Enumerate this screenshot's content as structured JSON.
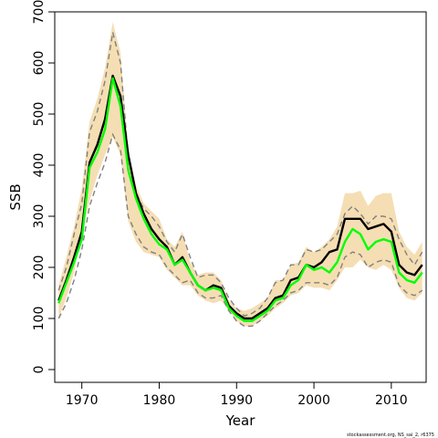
{
  "footnote": "stockassessment.org, NS_sai_2, r6375",
  "chart_data": {
    "type": "line",
    "xlabel": "Year",
    "ylabel": "SSB",
    "xlim": [
      1966.5,
      2014.5
    ],
    "ylim": [
      -25,
      700
    ],
    "x_ticks": [
      1970,
      1980,
      1990,
      2000,
      2010
    ],
    "y_ticks": [
      0,
      100,
      200,
      300,
      400,
      500,
      600,
      700
    ],
    "x_tick_labels": [
      "1970",
      "1980",
      "1990",
      "2000",
      "2010"
    ],
    "y_tick_labels": [
      "0",
      "100",
      "200",
      "300",
      "400",
      "500",
      "600",
      "700"
    ],
    "grid": false,
    "colors": {
      "band": "#f5deb3",
      "estimate": "#000000",
      "compare": "#00ff00",
      "bounds": "#808080"
    },
    "x": [
      1967,
      1968,
      1969,
      1970,
      1971,
      1972,
      1973,
      1974,
      1975,
      1976,
      1977,
      1978,
      1979,
      1980,
      1981,
      1982,
      1983,
      1984,
      1985,
      1986,
      1987,
      1988,
      1989,
      1990,
      1991,
      1992,
      1993,
      1994,
      1995,
      1996,
      1997,
      1998,
      1999,
      2000,
      2001,
      2002,
      2003,
      2004,
      2005,
      2006,
      2007,
      2008,
      2009,
      2010,
      2011,
      2012,
      2013,
      2014
    ],
    "series": [
      {
        "key": "band_upper",
        "values": [
          165,
          220,
          280,
          355,
          485,
          530,
          590,
          680,
          620,
          430,
          360,
          325,
          310,
          295,
          255,
          240,
          270,
          210,
          185,
          190,
          190,
          175,
          135,
          120,
          115,
          120,
          130,
          140,
          175,
          175,
          205,
          210,
          240,
          230,
          240,
          255,
          280,
          345,
          345,
          350,
          320,
          340,
          345,
          345,
          270,
          240,
          225,
          250
        ]
      },
      {
        "key": "band_lower",
        "values": [
          100,
          140,
          190,
          265,
          330,
          380,
          420,
          455,
          420,
          290,
          250,
          230,
          225,
          220,
          195,
          180,
          165,
          165,
          145,
          135,
          130,
          135,
          115,
          95,
          85,
          85,
          95,
          105,
          120,
          130,
          145,
          150,
          165,
          160,
          160,
          155,
          175,
          200,
          200,
          215,
          200,
          195,
          205,
          195,
          160,
          140,
          135,
          150
        ]
      },
      {
        "key": "estimate",
        "values": [
          135,
          175,
          220,
          270,
          405,
          440,
          490,
          575,
          535,
          420,
          345,
          305,
          275,
          255,
          240,
          205,
          220,
          190,
          165,
          155,
          165,
          160,
          125,
          110,
          100,
          100,
          110,
          120,
          140,
          145,
          175,
          180,
          205,
          200,
          210,
          230,
          235,
          295,
          295,
          295,
          275,
          280,
          285,
          270,
          205,
          190,
          185,
          205
        ]
      },
      {
        "key": "compare",
        "values": [
          130,
          170,
          210,
          255,
          395,
          425,
          470,
          570,
          515,
          390,
          335,
          295,
          265,
          245,
          235,
          205,
          215,
          190,
          165,
          155,
          160,
          155,
          120,
          105,
          95,
          95,
          105,
          115,
          135,
          140,
          165,
          175,
          205,
          195,
          200,
          190,
          210,
          250,
          275,
          265,
          235,
          250,
          255,
          250,
          190,
          175,
          170,
          190
        ]
      },
      {
        "key": "bound_upper",
        "values": [
          155,
          200,
          265,
          325,
          465,
          505,
          565,
          660,
          600,
          415,
          345,
          315,
          300,
          280,
          250,
          230,
          265,
          220,
          180,
          185,
          185,
          170,
          140,
          120,
          105,
          110,
          120,
          140,
          170,
          175,
          205,
          205,
          235,
          230,
          235,
          250,
          265,
          305,
          320,
          305,
          285,
          300,
          300,
          295,
          255,
          225,
          205,
          230
        ]
      },
      {
        "key": "bound_lower",
        "values": [
          100,
          130,
          175,
          235,
          320,
          365,
          405,
          460,
          430,
          300,
          265,
          240,
          230,
          225,
          200,
          185,
          170,
          175,
          150,
          140,
          140,
          145,
          115,
          95,
          85,
          85,
          95,
          110,
          125,
          135,
          150,
          155,
          170,
          170,
          170,
          165,
          180,
          220,
          230,
          225,
          200,
          210,
          215,
          210,
          165,
          150,
          145,
          155
        ]
      }
    ]
  }
}
